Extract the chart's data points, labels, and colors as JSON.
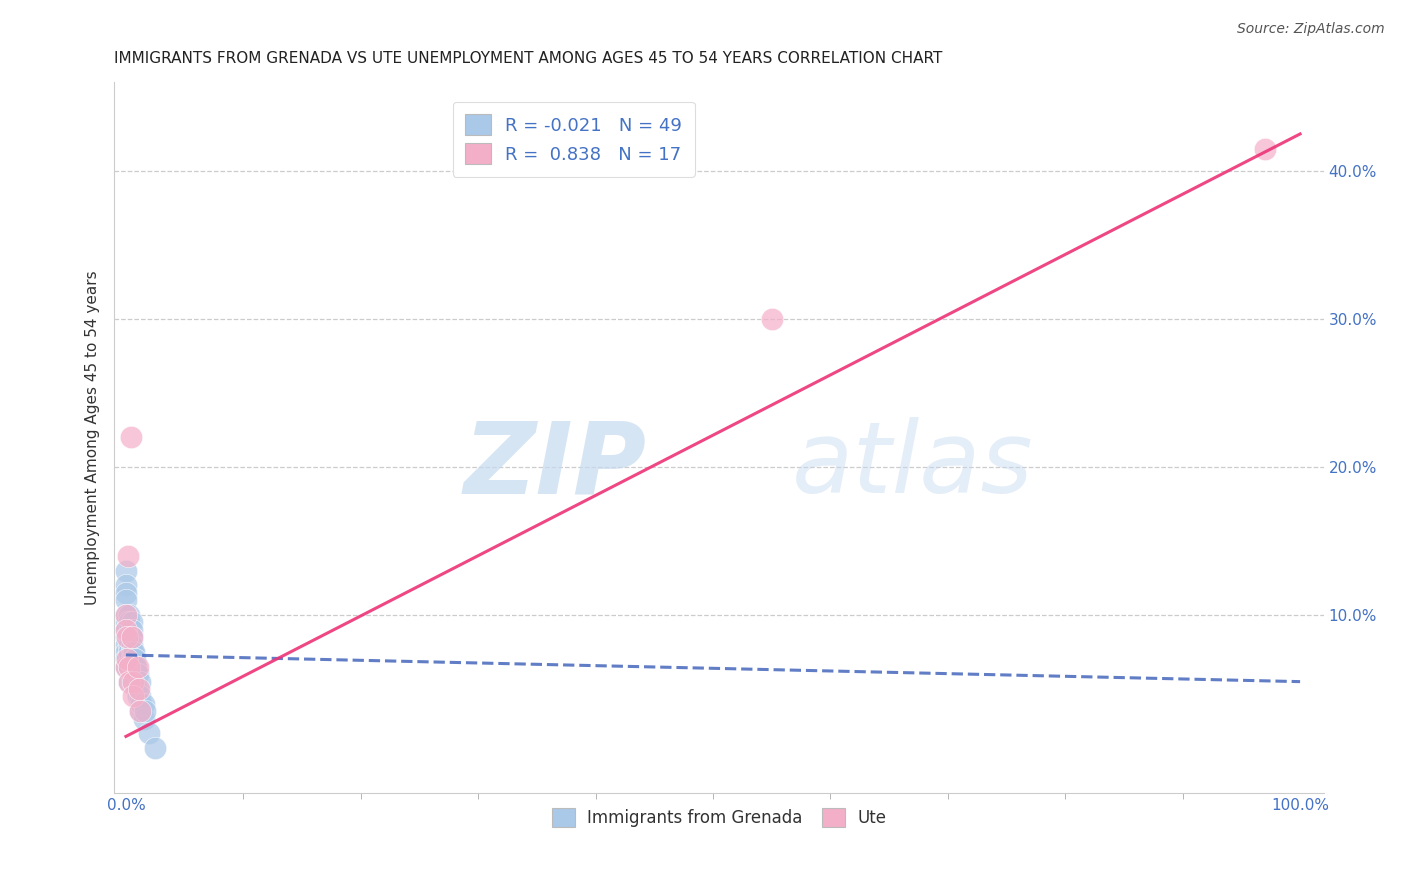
{
  "title": "IMMIGRANTS FROM GRENADA VS UTE UNEMPLOYMENT AMONG AGES 45 TO 54 YEARS CORRELATION CHART",
  "source": "Source: ZipAtlas.com",
  "tick_color": "#4472c4",
  "ylabel": "Unemployment Among Ages 45 to 54 years",
  "xlim": [
    -0.01,
    1.02
  ],
  "ylim": [
    -0.02,
    0.46
  ],
  "legend_line1": "R = -0.021   N = 49",
  "legend_line2": "R =  0.838   N = 17",
  "blue_color": "#7bafd4",
  "pink_color": "#f888aa",
  "blue_fill": "#aac8e8",
  "pink_fill": "#f4afc8",
  "blue_line_color": "#4466bb",
  "pink_line_color": "#ee3377",
  "watermark_zip": "ZIP",
  "watermark_atlas": "atlas",
  "blue_scatter_x": [
    0.0,
    0.0,
    0.0,
    0.0,
    0.0,
    0.0,
    0.0,
    0.0,
    0.0,
    0.0,
    0.0,
    0.0,
    0.003,
    0.003,
    0.003,
    0.003,
    0.003,
    0.003,
    0.003,
    0.005,
    0.005,
    0.005,
    0.005,
    0.005,
    0.005,
    0.005,
    0.005,
    0.005,
    0.006,
    0.006,
    0.007,
    0.007,
    0.007,
    0.008,
    0.008,
    0.008,
    0.009,
    0.009,
    0.01,
    0.01,
    0.012,
    0.012,
    0.012,
    0.013,
    0.015,
    0.015,
    0.016,
    0.02,
    0.025
  ],
  "blue_scatter_y": [
    0.13,
    0.12,
    0.115,
    0.11,
    0.1,
    0.095,
    0.09,
    0.085,
    0.08,
    0.075,
    0.07,
    0.065,
    0.1,
    0.095,
    0.085,
    0.08,
    0.075,
    0.065,
    0.055,
    0.095,
    0.09,
    0.085,
    0.08,
    0.075,
    0.07,
    0.065,
    0.06,
    0.055,
    0.075,
    0.065,
    0.075,
    0.07,
    0.06,
    0.07,
    0.065,
    0.055,
    0.065,
    0.05,
    0.06,
    0.045,
    0.055,
    0.045,
    0.035,
    0.04,
    0.04,
    0.03,
    0.035,
    0.02,
    0.01
  ],
  "pink_scatter_x": [
    0.0,
    0.0,
    0.0,
    0.001,
    0.001,
    0.002,
    0.003,
    0.003,
    0.004,
    0.005,
    0.006,
    0.006,
    0.01,
    0.011,
    0.012,
    0.55,
    0.97
  ],
  "pink_scatter_y": [
    0.1,
    0.09,
    0.065,
    0.085,
    0.07,
    0.14,
    0.065,
    0.055,
    0.22,
    0.085,
    0.055,
    0.045,
    0.065,
    0.05,
    0.035,
    0.3,
    0.415
  ],
  "blue_trend_x0": 0.0,
  "blue_trend_x1": 1.0,
  "blue_trend_y0": 0.073,
  "blue_trend_y1": 0.055,
  "pink_trend_x0": 0.0,
  "pink_trend_x1": 1.0,
  "pink_trend_y0": 0.018,
  "pink_trend_y1": 0.425,
  "xminor_ticks": [
    0.1,
    0.2,
    0.3,
    0.4,
    0.5,
    0.6,
    0.7,
    0.8,
    0.9
  ],
  "yminor_ticks": [
    0.05,
    0.15,
    0.25,
    0.35
  ],
  "ylabel_fontsize": 11,
  "title_fontsize": 11
}
